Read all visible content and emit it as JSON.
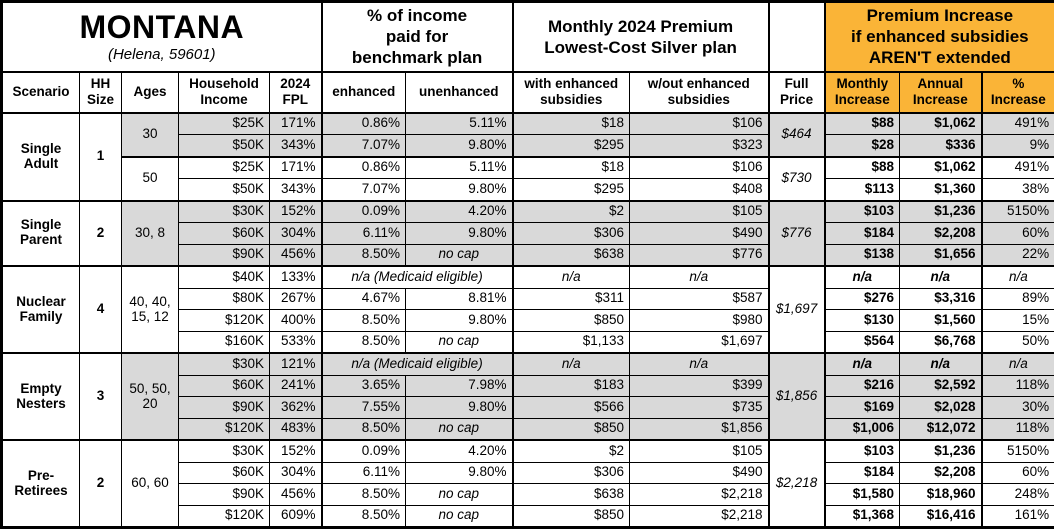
{
  "table": {
    "header": {
      "title": "MONTANA",
      "subtitle": "(Helena, 59601)",
      "group_income_pct": "% of income\npaid for\nbenchmark plan",
      "group_premium": "Monthly 2024 Premium\nLowest-Cost Silver plan",
      "group_increase": "Premium Increase\nif enhanced subsidies\nAREN'T extended",
      "cols": {
        "scenario": "Scenario",
        "hh": "HH\nSize",
        "ages": "Ages",
        "income": "Household\nIncome",
        "fpl": "2024\nFPL",
        "enhanced": "enhanced",
        "unenhanced": "unenhanced",
        "with_sub": "with enhanced\nsubsidies",
        "without_sub": "w/out enhanced\nsubsidies",
        "full": "Full\nPrice",
        "monthly": "Monthly\nIncrease",
        "annual": "Annual\nIncrease",
        "pct": "%\nIncrease"
      }
    },
    "colors": {
      "highlight_orange": "#FAB437",
      "band_gray": "#D9D9D9"
    },
    "groups": [
      {
        "scenario": "Single\nAdult",
        "hh": "1",
        "bands": [
          {
            "ages": "30",
            "shaded": true,
            "full": "$464",
            "rows": [
              {
                "income": "$25K",
                "fpl": "171%",
                "enhanced": "0.86%",
                "unenhanced": "5.11%",
                "with_sub": "$18",
                "without_sub": "$106",
                "monthly": "$88",
                "annual": "$1,062",
                "pct": "491%"
              },
              {
                "income": "$50K",
                "fpl": "343%",
                "enhanced": "7.07%",
                "unenhanced": "9.80%",
                "with_sub": "$295",
                "without_sub": "$323",
                "monthly": "$28",
                "annual": "$336",
                "pct": "9%"
              }
            ]
          },
          {
            "ages": "50",
            "shaded": false,
            "full": "$730",
            "rows": [
              {
                "income": "$25K",
                "fpl": "171%",
                "enhanced": "0.86%",
                "unenhanced": "5.11%",
                "with_sub": "$18",
                "without_sub": "$106",
                "monthly": "$88",
                "annual": "$1,062",
                "pct": "491%"
              },
              {
                "income": "$50K",
                "fpl": "343%",
                "enhanced": "7.07%",
                "unenhanced": "9.80%",
                "with_sub": "$295",
                "without_sub": "$408",
                "monthly": "$113",
                "annual": "$1,360",
                "pct": "38%"
              }
            ]
          }
        ]
      },
      {
        "scenario": "Single\nParent",
        "hh": "2",
        "bands": [
          {
            "ages": "30, 8",
            "shaded": true,
            "full": "$776",
            "rows": [
              {
                "income": "$30K",
                "fpl": "152%",
                "enhanced": "0.09%",
                "unenhanced": "4.20%",
                "with_sub": "$2",
                "without_sub": "$105",
                "monthly": "$103",
                "annual": "$1,236",
                "pct": "5150%"
              },
              {
                "income": "$60K",
                "fpl": "304%",
                "enhanced": "6.11%",
                "unenhanced": "9.80%",
                "with_sub": "$306",
                "without_sub": "$490",
                "monthly": "$184",
                "annual": "$2,208",
                "pct": "60%"
              },
              {
                "income": "$90K",
                "fpl": "456%",
                "enhanced": "8.50%",
                "unenhanced": "no cap",
                "with_sub": "$638",
                "without_sub": "$776",
                "monthly": "$138",
                "annual": "$1,656",
                "pct": "22%"
              }
            ]
          }
        ]
      },
      {
        "scenario": "Nuclear\nFamily",
        "hh": "4",
        "bands": [
          {
            "ages": "40, 40,\n15, 12",
            "shaded": false,
            "full": "$1,697",
            "rows": [
              {
                "income": "$40K",
                "fpl": "133%",
                "medicaid": "n/a (Medicaid eligible)",
                "with_sub": "n/a",
                "without_sub": "n/a",
                "monthly": "n/a",
                "annual": "n/a",
                "pct": "n/a"
              },
              {
                "income": "$80K",
                "fpl": "267%",
                "enhanced": "4.67%",
                "unenhanced": "8.81%",
                "with_sub": "$311",
                "without_sub": "$587",
                "monthly": "$276",
                "annual": "$3,316",
                "pct": "89%"
              },
              {
                "income": "$120K",
                "fpl": "400%",
                "enhanced": "8.50%",
                "unenhanced": "9.80%",
                "with_sub": "$850",
                "without_sub": "$980",
                "monthly": "$130",
                "annual": "$1,560",
                "pct": "15%"
              },
              {
                "income": "$160K",
                "fpl": "533%",
                "enhanced": "8.50%",
                "unenhanced": "no cap",
                "with_sub": "$1,133",
                "without_sub": "$1,697",
                "monthly": "$564",
                "annual": "$6,768",
                "pct": "50%"
              }
            ]
          }
        ]
      },
      {
        "scenario": "Empty\nNesters",
        "hh": "3",
        "bands": [
          {
            "ages": "50, 50,\n20",
            "shaded": true,
            "full": "$1,856",
            "rows": [
              {
                "income": "$30K",
                "fpl": "121%",
                "medicaid": "n/a (Medicaid eligible)",
                "with_sub": "n/a",
                "without_sub": "n/a",
                "monthly": "n/a",
                "annual": "n/a",
                "pct": "n/a"
              },
              {
                "income": "$60K",
                "fpl": "241%",
                "enhanced": "3.65%",
                "unenhanced": "7.98%",
                "with_sub": "$183",
                "without_sub": "$399",
                "monthly": "$216",
                "annual": "$2,592",
                "pct": "118%"
              },
              {
                "income": "$90K",
                "fpl": "362%",
                "enhanced": "7.55%",
                "unenhanced": "9.80%",
                "with_sub": "$566",
                "without_sub": "$735",
                "monthly": "$169",
                "annual": "$2,028",
                "pct": "30%"
              },
              {
                "income": "$120K",
                "fpl": "483%",
                "enhanced": "8.50%",
                "unenhanced": "no cap",
                "with_sub": "$850",
                "without_sub": "$1,856",
                "monthly": "$1,006",
                "annual": "$12,072",
                "pct": "118%"
              }
            ]
          }
        ]
      },
      {
        "scenario": "Pre-\nRetirees",
        "hh": "2",
        "bands": [
          {
            "ages": "60, 60",
            "shaded": false,
            "full": "$2,218",
            "rows": [
              {
                "income": "$30K",
                "fpl": "152%",
                "enhanced": "0.09%",
                "unenhanced": "4.20%",
                "with_sub": "$2",
                "without_sub": "$105",
                "monthly": "$103",
                "annual": "$1,236",
                "pct": "5150%"
              },
              {
                "income": "$60K",
                "fpl": "304%",
                "enhanced": "6.11%",
                "unenhanced": "9.80%",
                "with_sub": "$306",
                "without_sub": "$490",
                "monthly": "$184",
                "annual": "$2,208",
                "pct": "60%"
              },
              {
                "income": "$90K",
                "fpl": "456%",
                "enhanced": "8.50%",
                "unenhanced": "no cap",
                "with_sub": "$638",
                "without_sub": "$2,218",
                "monthly": "$1,580",
                "annual": "$18,960",
                "pct": "248%"
              },
              {
                "income": "$120K",
                "fpl": "609%",
                "enhanced": "8.50%",
                "unenhanced": "no cap",
                "with_sub": "$850",
                "without_sub": "$2,218",
                "monthly": "$1,368",
                "annual": "$16,416",
                "pct": "161%"
              }
            ]
          }
        ]
      }
    ]
  },
  "chart_data": {
    "type": "table",
    "title": "MONTANA (Helena, 59601)",
    "column_groups": [
      "% of income paid for benchmark plan",
      "Monthly 2024 Premium Lowest-Cost Silver plan",
      "Premium Increase if enhanced subsidies AREN'T extended"
    ],
    "columns": [
      "Scenario",
      "HH Size",
      "Ages",
      "Household Income",
      "2024 FPL",
      "enhanced",
      "unenhanced",
      "with enhanced subsidies",
      "w/out enhanced subsidies",
      "Full Price",
      "Monthly Increase",
      "Annual Increase",
      "% Increase"
    ],
    "rows": [
      [
        "Single Adult",
        "1",
        "30",
        "$25K",
        "171%",
        "0.86%",
        "5.11%",
        "$18",
        "$106",
        "$464",
        "$88",
        "$1,062",
        "491%"
      ],
      [
        "Single Adult",
        "1",
        "30",
        "$50K",
        "343%",
        "7.07%",
        "9.80%",
        "$295",
        "$323",
        "$464",
        "$28",
        "$336",
        "9%"
      ],
      [
        "Single Adult",
        "1",
        "50",
        "$25K",
        "171%",
        "0.86%",
        "5.11%",
        "$18",
        "$106",
        "$730",
        "$88",
        "$1,062",
        "491%"
      ],
      [
        "Single Adult",
        "1",
        "50",
        "$50K",
        "343%",
        "7.07%",
        "9.80%",
        "$295",
        "$408",
        "$730",
        "$113",
        "$1,360",
        "38%"
      ],
      [
        "Single Parent",
        "2",
        "30, 8",
        "$30K",
        "152%",
        "0.09%",
        "4.20%",
        "$2",
        "$105",
        "$776",
        "$103",
        "$1,236",
        "5150%"
      ],
      [
        "Single Parent",
        "2",
        "30, 8",
        "$60K",
        "304%",
        "6.11%",
        "9.80%",
        "$306",
        "$490",
        "$776",
        "$184",
        "$2,208",
        "60%"
      ],
      [
        "Single Parent",
        "2",
        "30, 8",
        "$90K",
        "456%",
        "8.50%",
        "no cap",
        "$638",
        "$776",
        "$776",
        "$138",
        "$1,656",
        "22%"
      ],
      [
        "Nuclear Family",
        "4",
        "40, 40, 15, 12",
        "$40K",
        "133%",
        "n/a (Medicaid eligible)",
        "n/a (Medicaid eligible)",
        "n/a",
        "n/a",
        "$1,697",
        "n/a",
        "n/a",
        "n/a"
      ],
      [
        "Nuclear Family",
        "4",
        "40, 40, 15, 12",
        "$80K",
        "267%",
        "4.67%",
        "8.81%",
        "$311",
        "$587",
        "$1,697",
        "$276",
        "$3,316",
        "89%"
      ],
      [
        "Nuclear Family",
        "4",
        "40, 40, 15, 12",
        "$120K",
        "400%",
        "8.50%",
        "9.80%",
        "$850",
        "$980",
        "$1,697",
        "$130",
        "$1,560",
        "15%"
      ],
      [
        "Nuclear Family",
        "4",
        "40, 40, 15, 12",
        "$160K",
        "533%",
        "8.50%",
        "no cap",
        "$1,133",
        "$1,697",
        "$1,697",
        "$564",
        "$6,768",
        "50%"
      ],
      [
        "Empty Nesters",
        "3",
        "50, 50, 20",
        "$30K",
        "121%",
        "n/a (Medicaid eligible)",
        "n/a (Medicaid eligible)",
        "n/a",
        "n/a",
        "$1,856",
        "n/a",
        "n/a",
        "n/a"
      ],
      [
        "Empty Nesters",
        "3",
        "50, 50, 20",
        "$60K",
        "241%",
        "3.65%",
        "7.98%",
        "$183",
        "$399",
        "$1,856",
        "$216",
        "$2,592",
        "118%"
      ],
      [
        "Empty Nesters",
        "3",
        "50, 50, 20",
        "$90K",
        "362%",
        "7.55%",
        "9.80%",
        "$566",
        "$735",
        "$1,856",
        "$169",
        "$2,028",
        "30%"
      ],
      [
        "Empty Nesters",
        "3",
        "50, 50, 20",
        "$120K",
        "483%",
        "8.50%",
        "no cap",
        "$850",
        "$1,856",
        "$1,856",
        "$1,006",
        "$12,072",
        "118%"
      ],
      [
        "Pre-Retirees",
        "2",
        "60, 60",
        "$30K",
        "152%",
        "0.09%",
        "4.20%",
        "$2",
        "$105",
        "$2,218",
        "$103",
        "$1,236",
        "5150%"
      ],
      [
        "Pre-Retirees",
        "2",
        "60, 60",
        "$60K",
        "304%",
        "6.11%",
        "9.80%",
        "$306",
        "$490",
        "$2,218",
        "$184",
        "$2,208",
        "60%"
      ],
      [
        "Pre-Retirees",
        "2",
        "60, 60",
        "$90K",
        "456%",
        "8.50%",
        "no cap",
        "$638",
        "$2,218",
        "$2,218",
        "$1,580",
        "$18,960",
        "248%"
      ],
      [
        "Pre-Retirees",
        "2",
        "60, 60",
        "$120K",
        "609%",
        "8.50%",
        "no cap",
        "$850",
        "$2,218",
        "$2,218",
        "$1,368",
        "$16,416",
        "161%"
      ]
    ]
  }
}
